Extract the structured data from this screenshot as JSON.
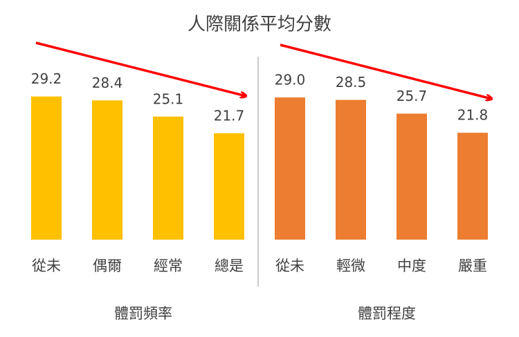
{
  "title": "人際關係平均分數",
  "chart_data": [
    {
      "type": "bar",
      "x_label": "體罰頻率",
      "categories": [
        "從未",
        "偶爾",
        "經常",
        "總是"
      ],
      "values": [
        29.2,
        28.4,
        25.1,
        21.7
      ],
      "value_labels": [
        "29.2",
        "28.4",
        "25.1",
        "21.7"
      ],
      "color": "#FFC000",
      "ylim": [
        0,
        30
      ]
    },
    {
      "type": "bar",
      "x_label": "體罰程度",
      "categories": [
        "從未",
        "輕微",
        "中度",
        "嚴重"
      ],
      "values": [
        29.0,
        28.5,
        25.7,
        21.8
      ],
      "value_labels": [
        "29.0",
        "28.5",
        "25.7",
        "21.8"
      ],
      "color": "#ED7D31",
      "ylim": [
        0,
        30
      ]
    }
  ]
}
